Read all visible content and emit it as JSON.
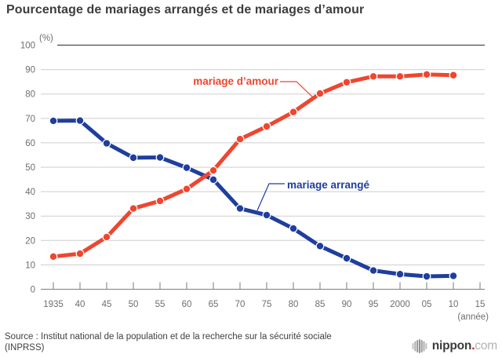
{
  "title": "Pourcentage de mariages arrangés et de mariages d’amour",
  "chart_data": {
    "type": "line",
    "title": "Pourcentage de mariages arrangés et de mariages d’amour",
    "y_axis_label": "(%)",
    "x_axis_label": "(année)",
    "ylim": [
      0,
      100
    ],
    "y_ticks": [
      0,
      10,
      20,
      30,
      40,
      50,
      60,
      70,
      80,
      90,
      100
    ],
    "x_tick_labels": [
      "1935",
      "40",
      "45",
      "50",
      "55",
      "60",
      "65",
      "70",
      "75",
      "80",
      "85",
      "90",
      "95",
      "2000",
      "05",
      "10",
      "15"
    ],
    "years": [
      1935,
      1940,
      1945,
      1950,
      1955,
      1960,
      1965,
      1970,
      1975,
      1980,
      1985,
      1990,
      1995,
      2000,
      2005,
      2010
    ],
    "grid": true,
    "legend_position": "inline-annotations",
    "series": [
      {
        "name": "mariage arrangé",
        "color": "#1f3e9d",
        "values": [
          69.0,
          69.1,
          59.8,
          53.9,
          54.0,
          49.8,
          44.9,
          33.1,
          30.4,
          24.9,
          17.7,
          12.7,
          7.7,
          6.2,
          5.3,
          5.5
        ]
      },
      {
        "name": "mariage d’amour",
        "color": "#ee4630",
        "values": [
          13.4,
          14.6,
          21.4,
          33.1,
          36.2,
          41.1,
          48.7,
          61.5,
          66.7,
          72.6,
          80.2,
          84.8,
          87.2,
          87.2,
          88.0,
          87.7
        ]
      }
    ]
  },
  "source": {
    "line1": "Source : Institut national de la population et de la recherche sur la sécurité sociale",
    "line2": "(INPRSS)"
  },
  "logo": {
    "name": "nippon",
    "dot": ".",
    "tld": "com"
  }
}
